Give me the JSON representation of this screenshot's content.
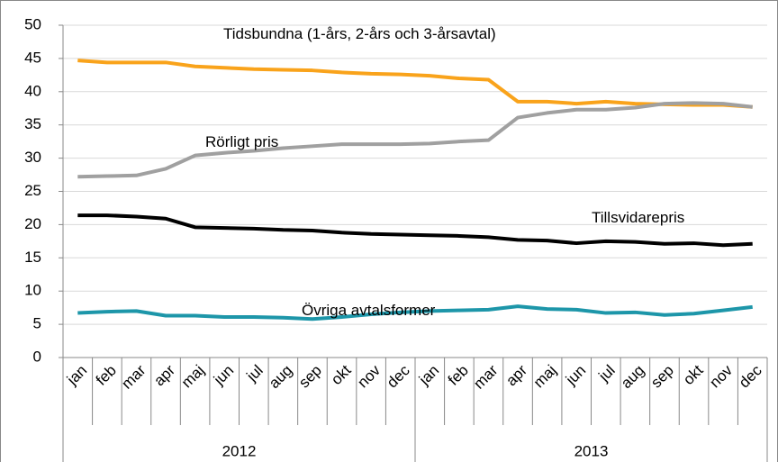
{
  "chart_data": {
    "type": "line",
    "categories": [
      "jan",
      "feb",
      "mar",
      "apr",
      "maj",
      "jun",
      "jul",
      "aug",
      "sep",
      "okt",
      "nov",
      "dec",
      "jan",
      "feb",
      "mar",
      "apr",
      "maj",
      "jun",
      "jul",
      "aug",
      "sep",
      "okt",
      "nov",
      "dec"
    ],
    "group_labels": [
      "2012",
      "2013"
    ],
    "ylim": [
      0,
      50
    ],
    "yticks": [
      0,
      5,
      10,
      15,
      20,
      25,
      30,
      35,
      40,
      45,
      50
    ],
    "grid": true,
    "series": [
      {
        "name": "Tidsbundna (1-års, 2-års och 3-årsavtal)",
        "color": "#f9a31b",
        "values": [
          44.7,
          44.4,
          44.4,
          44.4,
          43.8,
          43.6,
          43.4,
          43.3,
          43.2,
          42.9,
          42.7,
          42.6,
          42.4,
          42.0,
          41.8,
          38.5,
          38.5,
          38.2,
          38.5,
          38.2,
          38.1,
          38.0,
          38.0,
          37.7
        ]
      },
      {
        "name": "Rörligt pris",
        "color": "#a0a0a0",
        "values": [
          27.2,
          27.3,
          27.4,
          28.4,
          30.4,
          30.8,
          31.1,
          31.5,
          31.8,
          32.1,
          32.1,
          32.1,
          32.2,
          32.5,
          32.7,
          36.1,
          36.8,
          37.3,
          37.3,
          37.6,
          38.2,
          38.3,
          38.2,
          37.7
        ]
      },
      {
        "name": "Tillsvidarepris",
        "color": "#000000",
        "values": [
          21.4,
          21.4,
          21.2,
          20.9,
          19.6,
          19.5,
          19.4,
          19.2,
          19.1,
          18.8,
          18.6,
          18.5,
          18.4,
          18.3,
          18.1,
          17.7,
          17.6,
          17.2,
          17.5,
          17.4,
          17.1,
          17.2,
          16.9,
          17.1
        ]
      },
      {
        "name": "Övriga avtalsformer",
        "color": "#1d96a9",
        "values": [
          6.7,
          6.9,
          7.0,
          6.3,
          6.3,
          6.1,
          6.1,
          6.0,
          5.8,
          6.1,
          6.5,
          6.8,
          7.0,
          7.1,
          7.2,
          7.7,
          7.3,
          7.2,
          6.7,
          6.8,
          6.4,
          6.6,
          7.1,
          7.6
        ]
      }
    ]
  }
}
